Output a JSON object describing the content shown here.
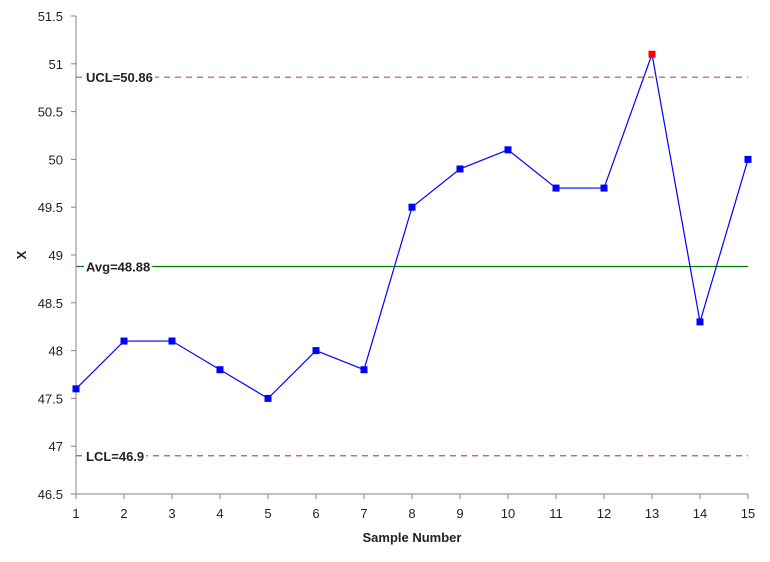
{
  "chart_data": {
    "type": "line",
    "title": "",
    "xlabel": "Sample Number",
    "ylabel": "X",
    "x": [
      1,
      2,
      3,
      4,
      5,
      6,
      7,
      8,
      9,
      10,
      11,
      12,
      13,
      14,
      15
    ],
    "series": [
      {
        "values": [
          47.6,
          48.1,
          48.1,
          47.8,
          47.5,
          48.0,
          47.8,
          49.5,
          49.9,
          50.1,
          49.7,
          49.7,
          51.1,
          48.3,
          50.0
        ],
        "color": "#0000ff",
        "out_of_control_color": "#ff0000"
      }
    ],
    "xlim": [
      1,
      15
    ],
    "ylim": [
      46.5,
      51.5
    ],
    "x_ticks": [
      "1",
      "2",
      "3",
      "4",
      "5",
      "6",
      "7",
      "8",
      "9",
      "10",
      "11",
      "12",
      "13",
      "14",
      "15"
    ],
    "y_ticks": [
      "46.5",
      "47",
      "47.5",
      "48",
      "48.5",
      "49",
      "49.5",
      "50",
      "50.5",
      "51",
      "51.5"
    ],
    "reference_lines": [
      {
        "label": "UCL=50.86",
        "value": 50.86,
        "style": "dashed",
        "color": "#c0504d"
      },
      {
        "label": "Avg=48.88",
        "value": 48.88,
        "style": "solid",
        "color": "#008000"
      },
      {
        "label": "LCL=46.9",
        "value": 46.9,
        "style": "dashed",
        "color": "#c0504d"
      }
    ],
    "grid": false,
    "legend": "none"
  }
}
